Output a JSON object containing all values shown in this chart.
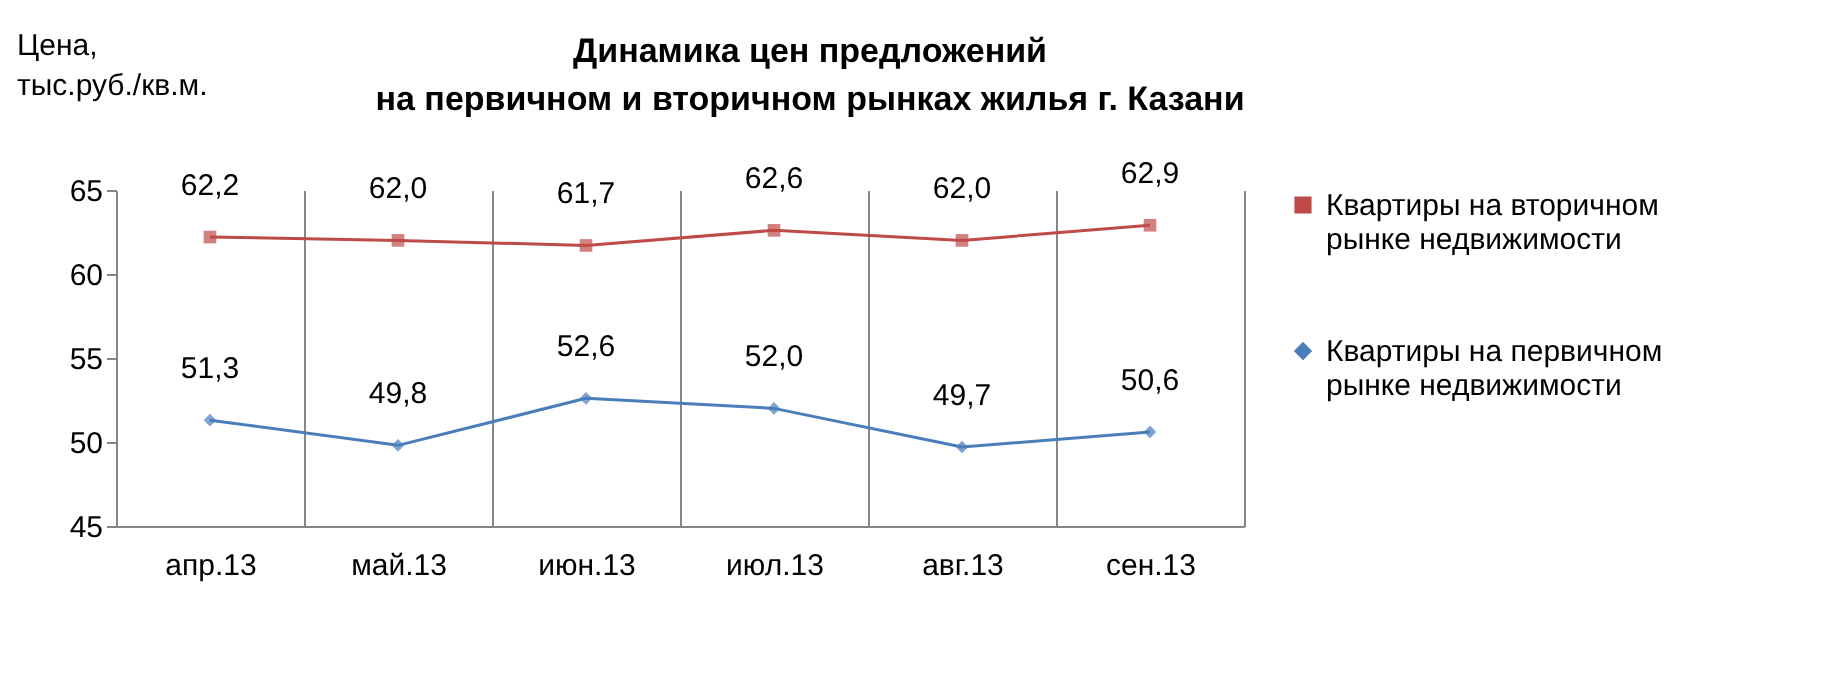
{
  "chart_data": {
    "type": "line",
    "title": "Динамика цен предложений\nна первичном и вторичном рынках жилья г. Казани",
    "ylabel": "Цена,\nтыс.руб./кв.м.",
    "categories": [
      "апр.13",
      "май.13",
      "июн.13",
      "июл.13",
      "авг.13",
      "сен.13"
    ],
    "series": [
      {
        "name": "Квартиры на вторичном рынке недвижимости",
        "color": "#be4b48",
        "marker": "square",
        "values": [
          62.2,
          62.0,
          61.7,
          62.6,
          62.0,
          62.9
        ],
        "value_labels": [
          "62,2",
          "62,0",
          "61,7",
          "62,6",
          "62,0",
          "62,9"
        ]
      },
      {
        "name": "Квартиры на первичном рынке недвижимости",
        "color": "#4a7ebb",
        "marker": "diamond",
        "values": [
          51.3,
          49.8,
          52.6,
          52.0,
          49.7,
          50.6
        ],
        "value_labels": [
          "51,3",
          "49,8",
          "52,6",
          "52,0",
          "49,7",
          "50,6"
        ]
      }
    ],
    "ylim": [
      45,
      65
    ],
    "yticks": [
      45,
      50,
      55,
      60,
      65
    ],
    "grid": "x",
    "legend": "right",
    "line_style": "solid"
  }
}
